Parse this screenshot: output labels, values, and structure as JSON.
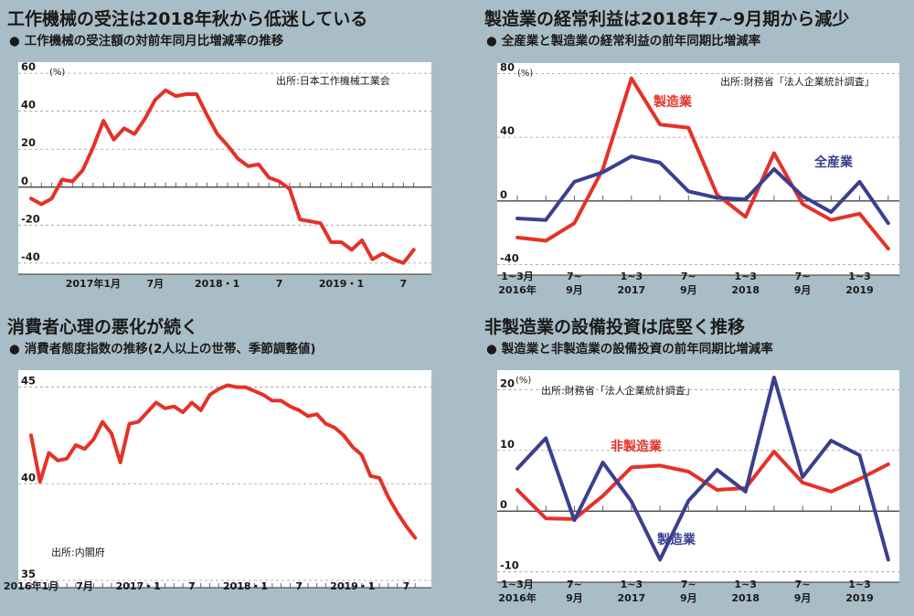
{
  "colors": {
    "red": "#e53128",
    "navy": "#3b3f8e",
    "background": "#a9bdc6",
    "plot": "#ffffff"
  },
  "panels": [
    {
      "title": "工作機械の受注は2018年秋から低迷している",
      "subtitle": "工作機械の受注額の対前年同月比増減率の推移"
    },
    {
      "title": "製造業の経常利益は2018年7~9月期から減少",
      "subtitle": "全産業と製造業の経常利益の前年同期比増減率"
    },
    {
      "title": "消費者心理の悪化が続く",
      "subtitle": "消費者態度指数の推移(2人以上の世帯、季節調整値)"
    },
    {
      "title": "非製造業の設備投資は底堅く推移",
      "subtitle": "製造業と非製造業の設備投資の前年同期比増減率"
    }
  ],
  "chart_data": [
    {
      "type": "line",
      "title": "工作機械の受注は2018年秋から低迷している",
      "subtitle": "工作機械の受注額の対前年同月比増減率の推移",
      "source": "出所:日本工作機械工業会",
      "unit": "(%)",
      "ylim": [
        -42,
        62
      ],
      "yticks": [
        60,
        40,
        20,
        0,
        -20,
        -40
      ],
      "yticklabels": [
        "60",
        "40",
        "20",
        "0",
        "-20",
        "-40"
      ],
      "xticklabels": [
        {
          "x": 6,
          "label": "2017年1月"
        },
        {
          "x": 12,
          "label": "7月"
        },
        {
          "x": 18,
          "label": "2018・1"
        },
        {
          "x": 24,
          "label": "7"
        },
        {
          "x": 30,
          "label": "2019・1"
        },
        {
          "x": 36,
          "label": "7"
        }
      ],
      "x": [
        0,
        1,
        2,
        3,
        4,
        5,
        6,
        7,
        8,
        9,
        10,
        11,
        12,
        13,
        14,
        15,
        16,
        17,
        18,
        19,
        20,
        21,
        22,
        23,
        24,
        25,
        26,
        27,
        28,
        29,
        30,
        31,
        32,
        33,
        34,
        35,
        36,
        37
      ],
      "series": [
        {
          "name": "",
          "color": "#e53128",
          "values": [
            -6,
            -9,
            -6,
            4,
            3,
            9,
            21,
            35,
            25,
            31,
            28,
            36,
            46,
            51,
            48,
            49,
            49,
            38,
            28,
            22,
            15,
            11,
            12,
            5,
            3,
            -1,
            -17,
            -18,
            -19,
            -29,
            -29,
            -33,
            -28,
            -38,
            -35,
            -38,
            -40,
            -33
          ]
        }
      ]
    },
    {
      "type": "line",
      "title": "製造業の経常利益は2018年7~9月期から減少",
      "subtitle": "全産業と製造業の経常利益の前年同期比増減率",
      "source": "出所:財務省「法人企業統計調査」",
      "unit": "(%)",
      "ylim": [
        -42,
        82
      ],
      "yticks": [
        80,
        40,
        0,
        -40
      ],
      "yticklabels": [
        "80",
        "40",
        "0",
        "-40"
      ],
      "xticklabels": [
        {
          "x": 0,
          "label": "1~3月",
          "sub": "2016年"
        },
        {
          "x": 2,
          "label": "7~",
          "sub": "9月"
        },
        {
          "x": 4,
          "label": "1~3",
          "sub": "2017"
        },
        {
          "x": 6,
          "label": "7~",
          "sub": "9月"
        },
        {
          "x": 8,
          "label": "1~3",
          "sub": "2018"
        },
        {
          "x": 10,
          "label": "7~",
          "sub": "9月"
        },
        {
          "x": 12,
          "label": "1~3",
          "sub": "2019"
        }
      ],
      "x": [
        0,
        1,
        2,
        3,
        4,
        5,
        6,
        7,
        8,
        9,
        10,
        11,
        12,
        13
      ],
      "series": [
        {
          "name": "製造業",
          "color": "#e53128",
          "values": [
            -23,
            -25,
            -14,
            20,
            77,
            48,
            46,
            4,
            -10,
            30,
            -2,
            -12,
            -8,
            -30
          ]
        },
        {
          "name": "全産業",
          "color": "#3b3f8e",
          "values": [
            -11,
            -12,
            12,
            18,
            28,
            24,
            6,
            2,
            1,
            20,
            3,
            -7,
            12,
            -14
          ]
        }
      ]
    },
    {
      "type": "line",
      "title": "消費者心理の悪化が続く",
      "subtitle": "消費者態度指数の推移(2人以上の世帯、季節調整値)",
      "source": "出所:内閣府",
      "ylim": [
        35,
        45.5
      ],
      "yticks": [
        45,
        40,
        35
      ],
      "yticklabels": [
        "45",
        "40",
        "35"
      ],
      "xticklabels": [
        {
          "x": 0,
          "label": "2016年1月"
        },
        {
          "x": 6,
          "label": "7月"
        },
        {
          "x": 12,
          "label": "2017・1"
        },
        {
          "x": 18,
          "label": "7"
        },
        {
          "x": 24,
          "label": "2018・1"
        },
        {
          "x": 30,
          "label": "7"
        },
        {
          "x": 36,
          "label": "2019・1"
        },
        {
          "x": 42,
          "label": "7"
        }
      ],
      "x": [
        0,
        1,
        2,
        3,
        4,
        5,
        6,
        7,
        8,
        9,
        10,
        11,
        12,
        13,
        14,
        15,
        16,
        17,
        18,
        19,
        20,
        21,
        22,
        23,
        24,
        25,
        26,
        27,
        28,
        29,
        30,
        31,
        32,
        33,
        34,
        35,
        36,
        37,
        38,
        39,
        40,
        41,
        42,
        43
      ],
      "series": [
        {
          "name": "",
          "color": "#e53128",
          "values": [
            42.5,
            40.1,
            41.6,
            41.2,
            41.3,
            42.0,
            41.8,
            42.3,
            43.2,
            42.6,
            41.1,
            43.1,
            43.2,
            43.7,
            44.2,
            43.9,
            44.0,
            43.7,
            44.2,
            43.8,
            44.6,
            44.9,
            45.1,
            45.0,
            45.0,
            44.8,
            44.6,
            44.3,
            44.3,
            44.0,
            43.8,
            43.5,
            43.6,
            43.1,
            42.9,
            42.5,
            41.9,
            41.5,
            40.4,
            40.3,
            39.3,
            38.5,
            37.8,
            37.2
          ]
        }
      ]
    },
    {
      "type": "line",
      "title": "非製造業の設備投資は底堅く推移",
      "subtitle": "製造業と非製造業の設備投資の前年同期比増減率",
      "source": "出所:財務省「法人企業統計調査」",
      "unit": "(%)",
      "ylim": [
        -10.5,
        22
      ],
      "yticks": [
        20,
        10,
        0,
        -10
      ],
      "yticklabels": [
        "20",
        "10",
        "0",
        "-10"
      ],
      "xticklabels": [
        {
          "x": 0,
          "label": "1~3月",
          "sub": "2016年"
        },
        {
          "x": 2,
          "label": "7~",
          "sub": "9月"
        },
        {
          "x": 4,
          "label": "1~3",
          "sub": "2017"
        },
        {
          "x": 6,
          "label": "7~",
          "sub": "9月"
        },
        {
          "x": 8,
          "label": "1~3",
          "sub": "2018"
        },
        {
          "x": 10,
          "label": "7~",
          "sub": "9月"
        },
        {
          "x": 12,
          "label": "1~3",
          "sub": "2019"
        }
      ],
      "x": [
        0,
        1,
        2,
        3,
        4,
        5,
        6,
        7,
        8,
        9,
        10,
        11,
        12,
        13
      ],
      "series": [
        {
          "name": "非製造業",
          "color": "#e53128",
          "values": [
            3.5,
            -1.2,
            -1.3,
            2.5,
            7.2,
            7.5,
            6.5,
            3.5,
            3.8,
            9.8,
            4.7,
            3.2,
            5.3,
            7.7
          ]
        },
        {
          "name": "製造業",
          "color": "#3b3f8e",
          "values": [
            7.0,
            12.0,
            -1.5,
            8.0,
            1.6,
            -8.0,
            1.7,
            6.8,
            3.2,
            22.0,
            5.6,
            11.6,
            9.2,
            -8.0
          ]
        }
      ]
    }
  ]
}
